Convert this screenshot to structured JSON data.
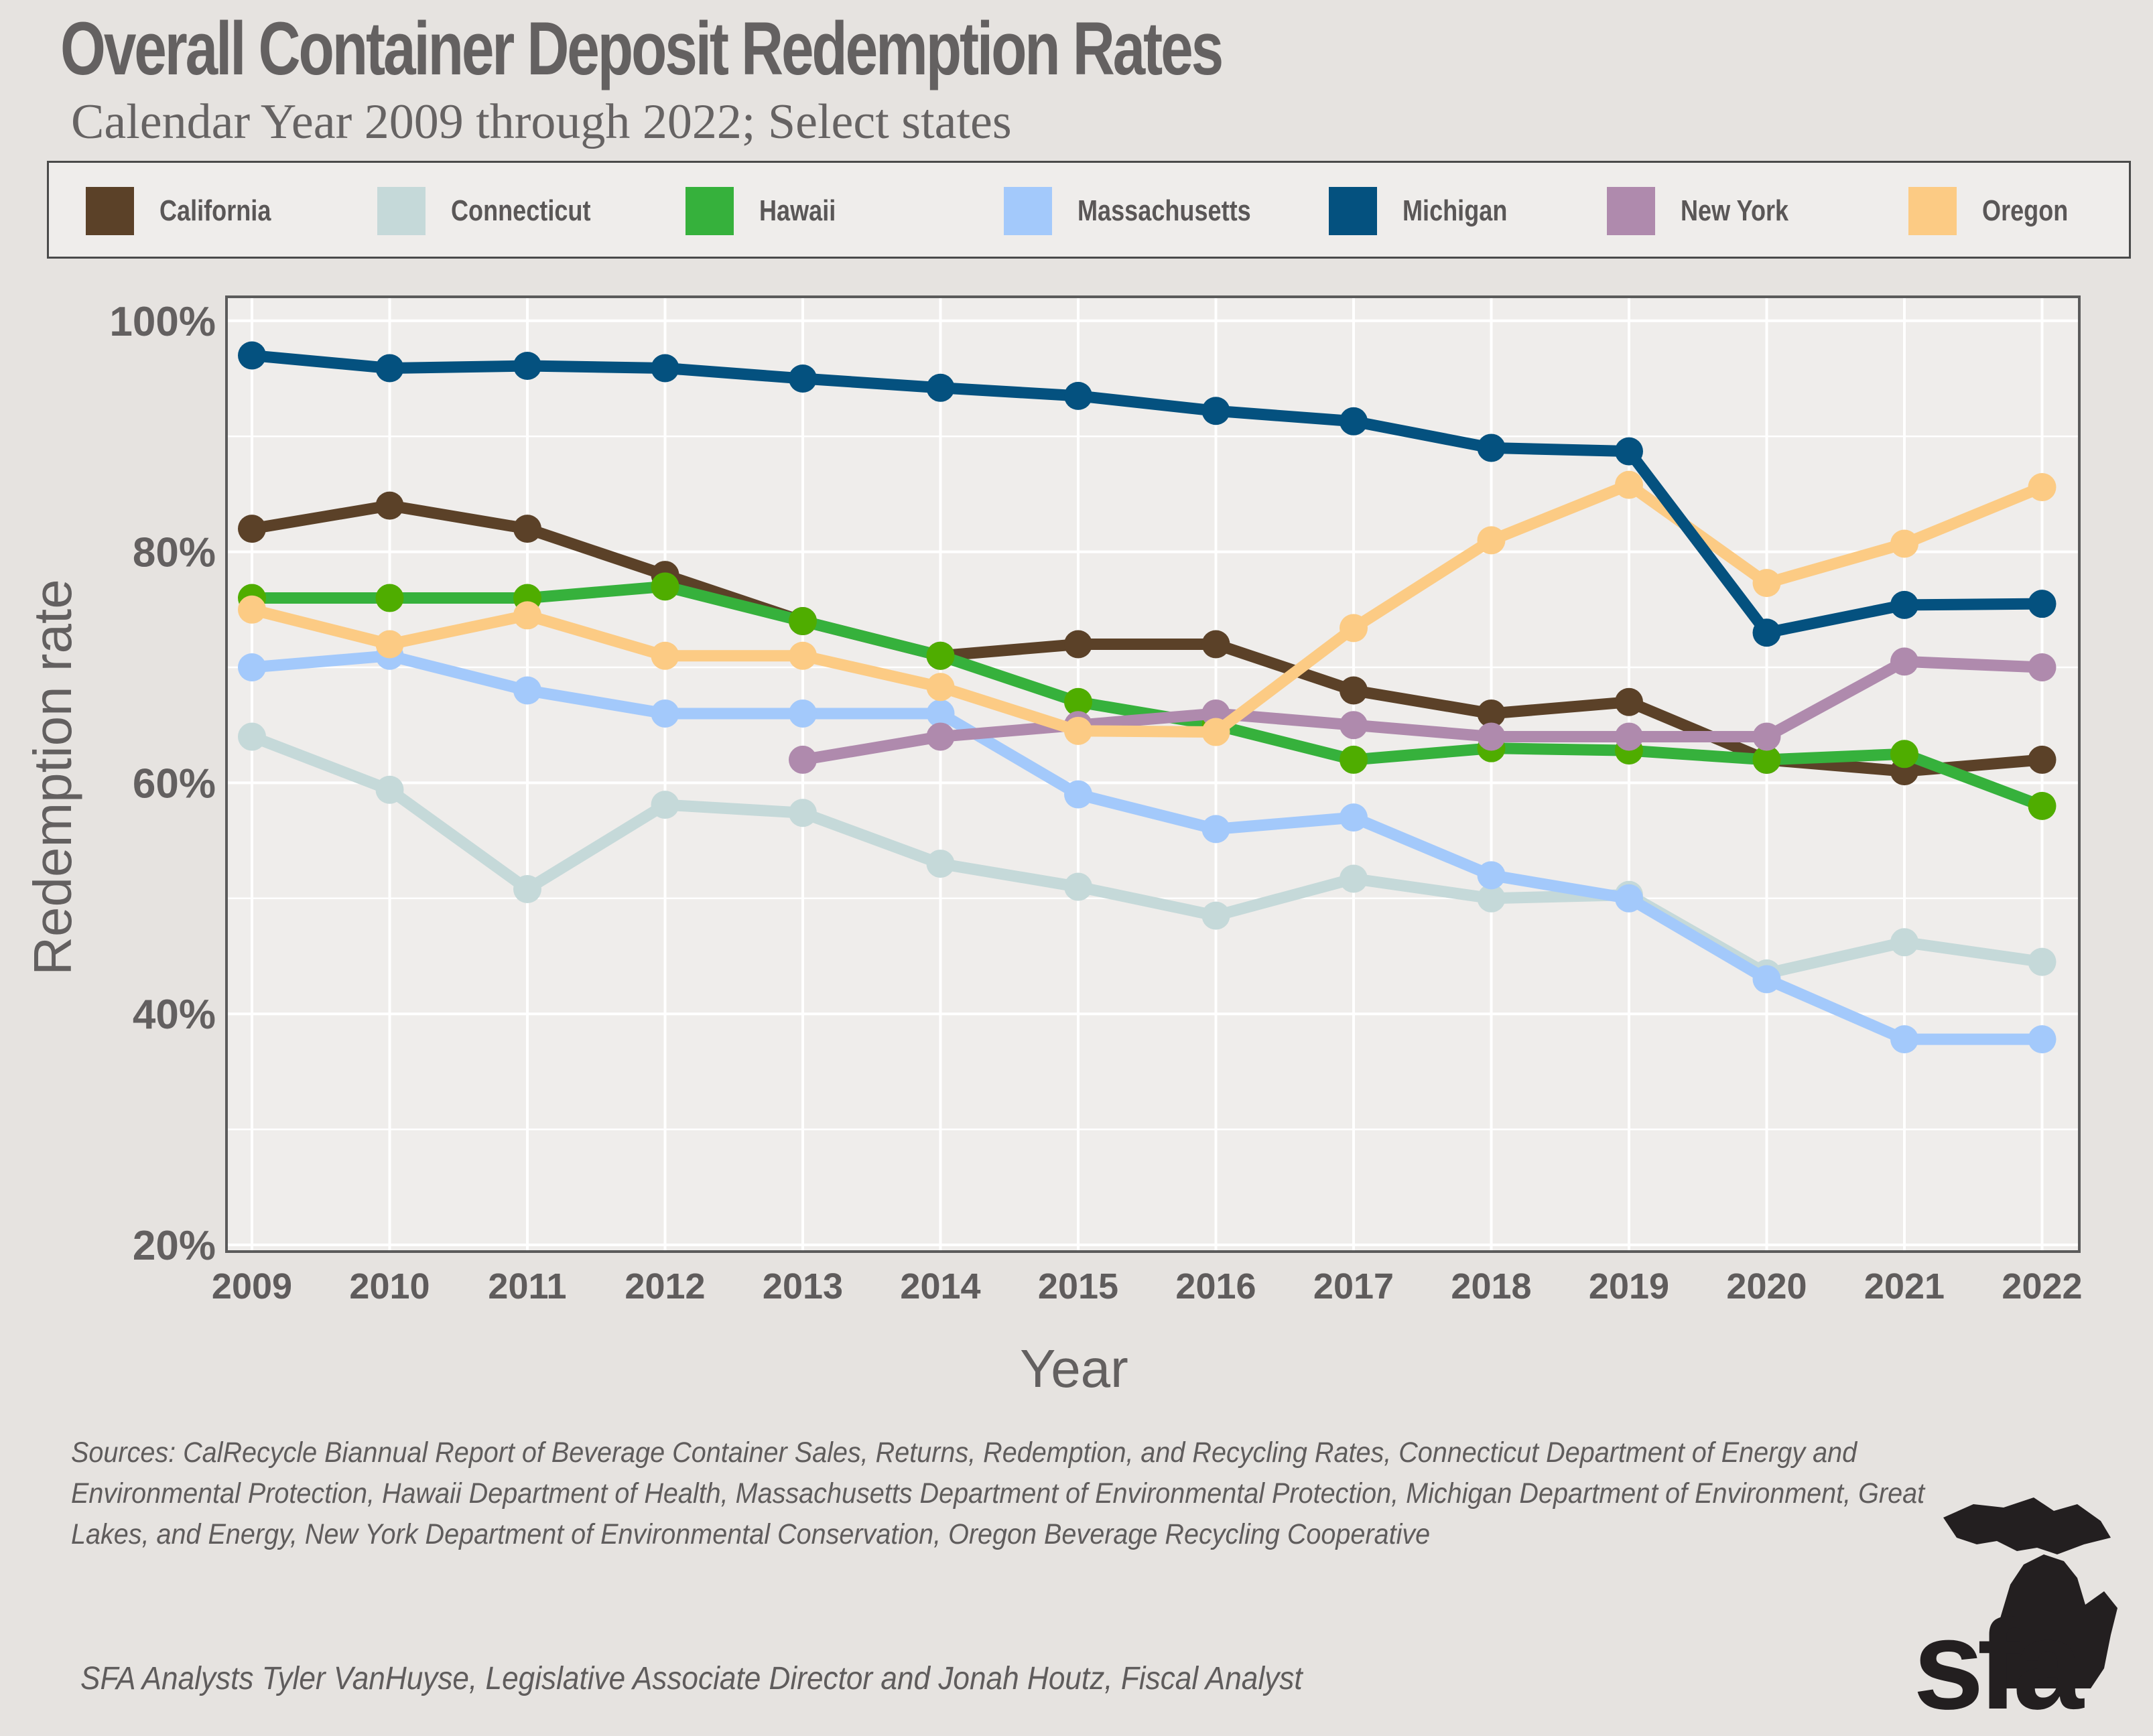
{
  "chart_data": {
    "type": "line",
    "title": "Overall Container Deposit Redemption Rates",
    "subtitle": "Calendar Year 2009 through 2022; Select states",
    "xlabel": "Year",
    "ylabel": "Redemption rate",
    "x": [
      "2009",
      "2010",
      "2011",
      "2012",
      "2013",
      "2014",
      "2015",
      "2016",
      "2017",
      "2018",
      "2019",
      "2020",
      "2021",
      "2022"
    ],
    "ylim": [
      20,
      100
    ],
    "yticks": [
      20,
      40,
      60,
      80,
      100
    ],
    "ytick_labels": [
      "20%",
      "40%",
      "60%",
      "80%",
      "100%"
    ],
    "grid": true,
    "legend_position": "top",
    "series": [
      {
        "name": "Connecticut",
        "color": "#c5d9d9",
        "values": [
          64,
          59.4,
          50.8,
          58.1,
          57.4,
          53,
          51,
          48.5,
          51.7,
          50,
          50.3,
          43.5,
          46.2,
          44.5
        ]
      },
      {
        "name": "Massachusetts",
        "color": "#a3c9fb",
        "values": [
          70,
          71,
          68,
          66,
          66,
          66,
          59,
          56,
          57,
          52,
          50,
          43,
          37.8,
          37.8
        ]
      },
      {
        "name": "California",
        "color": "#5b4128",
        "values": [
          82,
          84,
          82,
          78,
          74,
          71,
          72,
          72,
          68,
          66,
          67,
          62,
          61,
          62
        ]
      },
      {
        "name": "Hawaii",
        "color": "#36b13c",
        "values": [
          76,
          76,
          76,
          77,
          74,
          71,
          67,
          65,
          62,
          63,
          62.8,
          62,
          62.5,
          58
        ]
      },
      {
        "name": "New York",
        "color": "#af8aad",
        "values": [
          null,
          null,
          null,
          null,
          62,
          64,
          65,
          66,
          65,
          64,
          64,
          64,
          70.5,
          70
        ]
      },
      {
        "name": "Oregon",
        "color": "#fccb84",
        "values": [
          75,
          72,
          74.5,
          71,
          71,
          68.3,
          64.5,
          64.4,
          73.4,
          81,
          85.8,
          77.3,
          80.7,
          85.6
        ]
      },
      {
        "name": "Michigan",
        "color": "#04517f",
        "values": [
          97,
          95.9,
          96.1,
          95.9,
          95,
          94.2,
          93.5,
          92.2,
          91.3,
          89,
          88.7,
          73,
          75.4,
          75.5
        ]
      }
    ]
  },
  "legend": [
    {
      "name": "California",
      "color": "#5b4128"
    },
    {
      "name": "Connecticut",
      "color": "#c5d9d9"
    },
    {
      "name": "Hawaii",
      "color": "#36b13c"
    },
    {
      "name": "Massachusetts",
      "color": "#a3c9fb"
    },
    {
      "name": "Michigan",
      "color": "#04517f"
    },
    {
      "name": "New York",
      "color": "#af8aad"
    },
    {
      "name": "Oregon",
      "color": "#fccb84"
    }
  ],
  "footer": {
    "sources": "Sources: CalRecycle Biannual Report of Beverage Container Sales, Returns, Redemption, and Recycling Rates, Connecticut Department of Energy and Environmental Protection, Hawaii Department of Health, Massachusetts Department of Environmental Protection, Michigan Department of Environment, Great Lakes, and Energy, New York Department of Environmental Conservation, Oregon Beverage Recycling Cooperative",
    "credits": "SFA Analysts Tyler VanHuyse, Legislative Associate Director and Jonah Houtz, Fiscal Analyst",
    "logo_text": "sfa"
  }
}
